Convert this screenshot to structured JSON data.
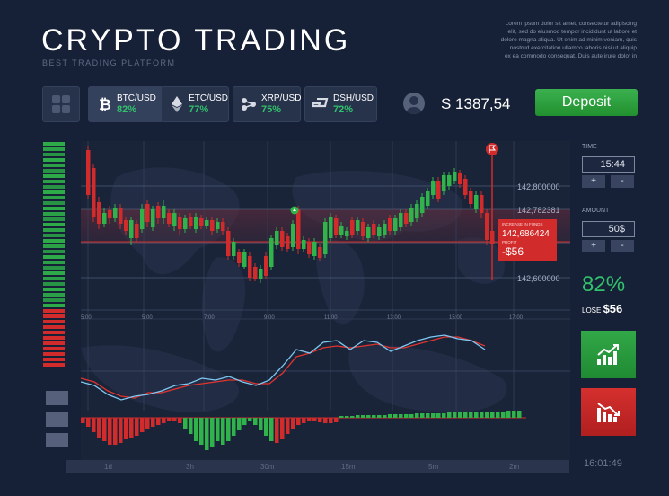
{
  "header": {
    "title": "CRYPTO TRADING",
    "subtitle": "BEST TRADING PLATFORM",
    "lorem_lines": [
      "Lorem ipsum dolor sit amet, consectetur adipiscing",
      "elit, sed do eiusmod tempor incididunt ut labore et",
      "dolore magna aliqua. Ut enim ad minim veniam, quis",
      "nostrud exercitation ullamco laboris nisi ut aliquip",
      "ex ea commodo consequat. Duis aute irure dolor in"
    ]
  },
  "pairs": [
    {
      "name": "BTC/USD",
      "pct": "82%",
      "icon": "bitcoin-icon",
      "active": true
    },
    {
      "name": "ETC/USD",
      "pct": "77%",
      "icon": "ethereum-icon",
      "active": false
    },
    {
      "name": "XRP/USD",
      "pct": "75%",
      "icon": "ripple-icon",
      "active": false
    },
    {
      "name": "DSH/USD",
      "pct": "72%",
      "icon": "dash-icon",
      "active": false
    }
  ],
  "account": {
    "balance": "S 1387,54",
    "deposit_label": "Deposit"
  },
  "price_chart": {
    "price_levels": [
      "142,800000",
      "142,782381",
      "142,600000"
    ],
    "x_ticks": [
      "5:00",
      "5:00",
      "7:00",
      "9:00",
      "11:00",
      "13:00",
      "15:00",
      "17:00"
    ],
    "tooltip_title": "INCREASE IN FUNDS",
    "tooltip_price": "142,686424",
    "tooltip_profit_label": "PROFIT",
    "tooltip_profit": "-$56"
  },
  "controls": {
    "time_label": "TIME",
    "time_value": "15:44",
    "amount_label": "AMOUNT",
    "amount_value": "50$",
    "plus": "+",
    "minus": "-",
    "profit_pct": "82%",
    "lose_label": "LOSE",
    "lose_value": "$56"
  },
  "timeframes": [
    "1d",
    "3h",
    "30m",
    "15m",
    "5m",
    "2m"
  ],
  "clock": "16:01:49",
  "colors": {
    "green": "#2fb34a",
    "red": "#d12b2b",
    "bg": "#162036",
    "blue_line": "#7ec8f2"
  }
}
